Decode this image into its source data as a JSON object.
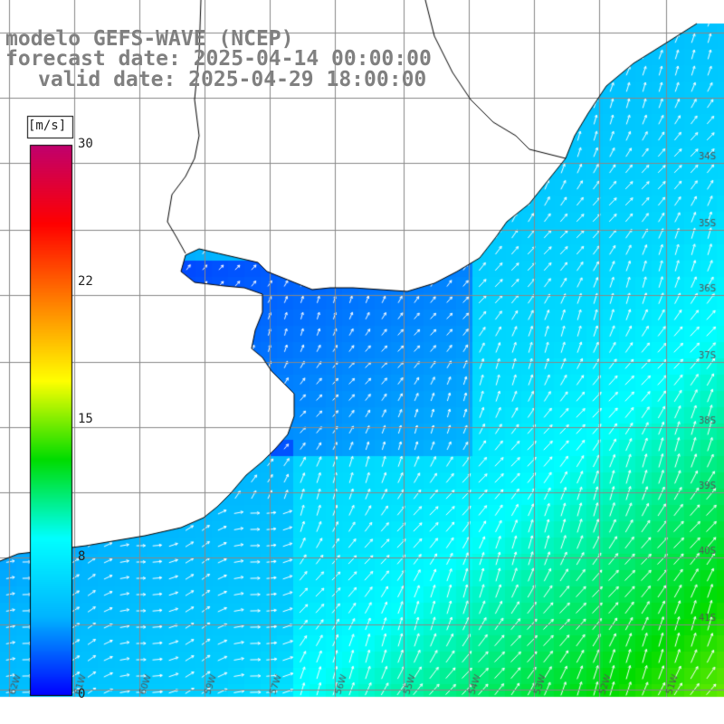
{
  "header": {
    "model": "modelo GEFS-WAVE (NCEP)",
    "forecast": "forecast date: 2025-04-14 00:00:00",
    "valid": "valid date: 2025-04-29 18:00:00"
  },
  "colorbar": {
    "unit": "[m/s]",
    "ticks": [
      "30",
      "22",
      "15",
      "8",
      "0"
    ],
    "tick_values": [
      30,
      22,
      15,
      8,
      0
    ],
    "vmin": 0,
    "vmax": 30,
    "colors": [
      "#0000ff",
      "#00b4ff",
      "#00ffff",
      "#00dc00",
      "#ffff00",
      "#ff8000",
      "#ff0000",
      "#c0006e"
    ]
  },
  "map": {
    "land_color": "#ffffff",
    "grid_color": "#888888",
    "coast_color": "#000000",
    "arrow_color": "#ffffff",
    "lat_labels": [
      "34S",
      "35S",
      "36S",
      "37S",
      "38S",
      "39S",
      "40S",
      "41S"
    ],
    "lon_labels": [
      "62W",
      "61W",
      "60W",
      "59W",
      "57W",
      "56W",
      "55W",
      "54W",
      "53W",
      "52W",
      "51W"
    ]
  },
  "chart_data": {
    "type": "heatmap",
    "title": "modelo GEFS-WAVE (NCEP)",
    "variable_unit": "[m/s]",
    "range": [
      0,
      30
    ],
    "note_values": "wind speed field; ~1-4 m/s near coast (blue), ~6-9 m/s offshore (cyan), ~10-12 m/s southeast corner (green); arrows point predominantly north-east"
  }
}
